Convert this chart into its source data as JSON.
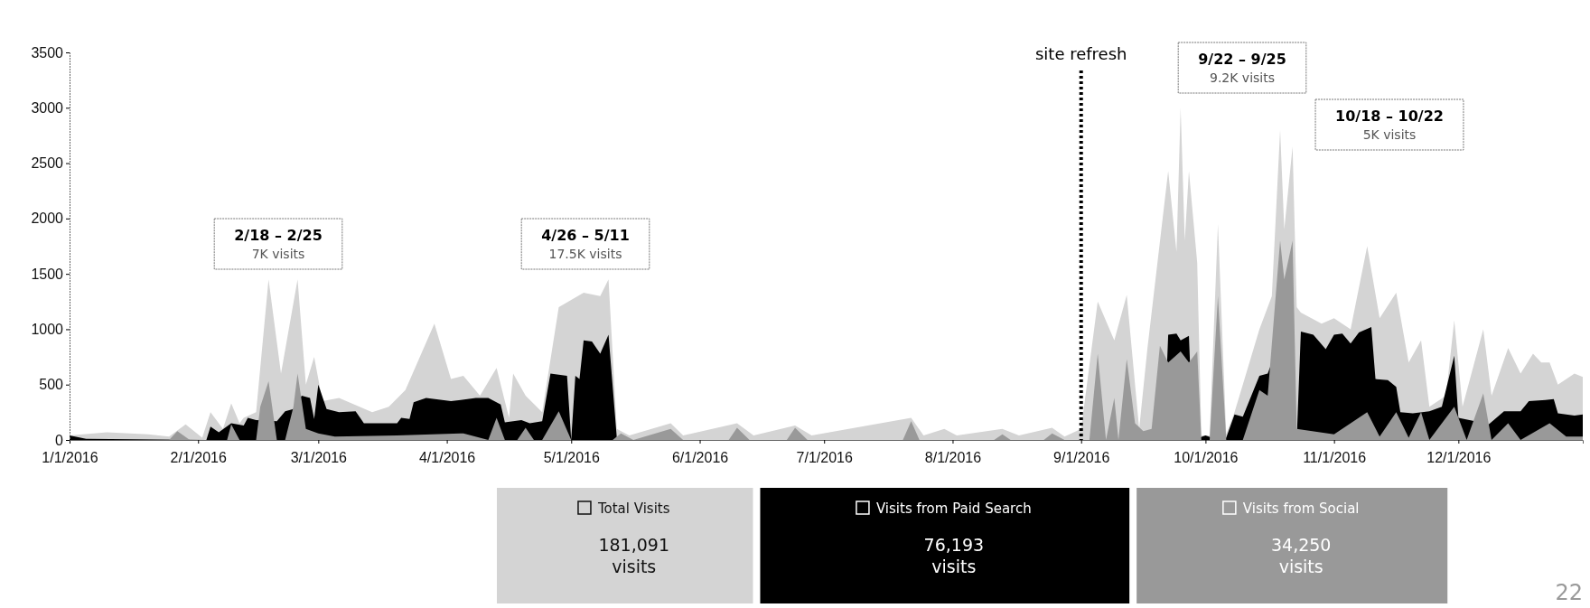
{
  "chart_data": {
    "type": "area",
    "xlim": [
      "2016-01-01",
      "2016-12-31"
    ],
    "xticks": [
      {
        "value": "2016-01-01",
        "label": "1/1/2016"
      },
      {
        "value": "2016-02-01",
        "label": "2/1/2016"
      },
      {
        "value": "2016-03-01",
        "label": "3/1/2016"
      },
      {
        "value": "2016-04-01",
        "label": "4/1/2016"
      },
      {
        "value": "2016-05-01",
        "label": "5/1/2016"
      },
      {
        "value": "2016-06-01",
        "label": "6/1/2016"
      },
      {
        "value": "2016-07-01",
        "label": "7/1/2016"
      },
      {
        "value": "2016-08-01",
        "label": "8/1/2016"
      },
      {
        "value": "2016-09-01",
        "label": "9/1/2016"
      },
      {
        "value": "2016-10-01",
        "label": "10/1/2016"
      },
      {
        "value": "2016-11-01",
        "label": "11/1/2016"
      },
      {
        "value": "2016-12-01",
        "label": "12/1/2016"
      }
    ],
    "ylim": [
      0,
      3500
    ],
    "yticks": [
      0,
      500,
      1000,
      1500,
      2000,
      2500,
      3000,
      3500
    ],
    "legend": "bottom",
    "series": [
      {
        "name": "Total Visits",
        "color": "#d4d4d4",
        "x": [
          "2016-01-01",
          "2016-01-10",
          "2016-01-20",
          "2016-01-25",
          "2016-01-29",
          "2016-02-02",
          "2016-02-04",
          "2016-02-07",
          "2016-02-09",
          "2016-02-11",
          "2016-02-12",
          "2016-02-15",
          "2016-02-18",
          "2016-02-21",
          "2016-02-25",
          "2016-02-27",
          "2016-02-29",
          "2016-03-02",
          "2016-03-06",
          "2016-03-14",
          "2016-03-18",
          "2016-03-22",
          "2016-03-29",
          "2016-04-02",
          "2016-04-05",
          "2016-04-09",
          "2016-04-13",
          "2016-04-16",
          "2016-04-17",
          "2016-04-20",
          "2016-04-24",
          "2016-04-28",
          "2016-05-04",
          "2016-05-08",
          "2016-05-10",
          "2016-05-12",
          "2016-05-15",
          "2016-05-25",
          "2016-05-28",
          "2016-06-10",
          "2016-06-14",
          "2016-06-24",
          "2016-06-28",
          "2016-07-22",
          "2016-07-25",
          "2016-07-30",
          "2016-08-02",
          "2016-08-13",
          "2016-08-17",
          "2016-08-25",
          "2016-08-28",
          "2016-09-01",
          "2016-09-05",
          "2016-09-09",
          "2016-09-12",
          "2016-09-15",
          "2016-09-17",
          "2016-09-22",
          "2016-09-24",
          "2016-09-25",
          "2016-09-26",
          "2016-09-27",
          "2016-09-29",
          "2016-09-30",
          "2016-10-02",
          "2016-10-04",
          "2016-10-06",
          "2016-10-08",
          "2016-10-10",
          "2016-10-14",
          "2016-10-17",
          "2016-10-19",
          "2016-10-20",
          "2016-10-22",
          "2016-10-23",
          "2016-10-24",
          "2016-10-29",
          "2016-11-01",
          "2016-11-05",
          "2016-11-09",
          "2016-11-12",
          "2016-11-16",
          "2016-11-19",
          "2016-11-22",
          "2016-11-24",
          "2016-11-28",
          "2016-11-30",
          "2016-12-02",
          "2016-12-07",
          "2016-12-09",
          "2016-12-13",
          "2016-12-16",
          "2016-12-19",
          "2016-12-21",
          "2016-12-23",
          "2016-12-25",
          "2016-12-29",
          "2016-12-31"
        ],
        "values": [
          40,
          70,
          50,
          30,
          140,
          20,
          250,
          100,
          330,
          150,
          200,
          250,
          1450,
          600,
          1450,
          500,
          750,
          350,
          380,
          250,
          300,
          450,
          1050,
          550,
          580,
          400,
          650,
          200,
          600,
          400,
          250,
          1200,
          1330,
          1300,
          1450,
          100,
          40,
          150,
          40,
          150,
          40,
          130,
          40,
          200,
          40,
          100,
          40,
          100,
          40,
          110,
          30,
          100,
          1250,
          900,
          1310,
          100,
          830,
          2430,
          1700,
          3000,
          1800,
          2430,
          1600,
          40,
          40,
          1950,
          50,
          250,
          500,
          1000,
          1300,
          2800,
          1900,
          2650,
          1200,
          1150,
          1050,
          1100,
          1000,
          1750,
          1100,
          1330,
          700,
          900,
          300,
          400,
          1080,
          300,
          1000,
          400,
          830,
          600,
          780,
          700,
          700,
          500,
          600,
          570
        ]
      },
      {
        "name": "Visits from Paid Search",
        "color": "#000000",
        "x": [
          "2016-01-01",
          "2016-01-05",
          "2016-02-03",
          "2016-02-04",
          "2016-02-06",
          "2016-02-09",
          "2016-02-12",
          "2016-02-13",
          "2016-02-15",
          "2016-02-20",
          "2016-02-22",
          "2016-02-24",
          "2016-02-26",
          "2016-02-28",
          "2016-02-29",
          "2016-03-01",
          "2016-03-03",
          "2016-03-06",
          "2016-03-10",
          "2016-03-12",
          "2016-03-20",
          "2016-03-21",
          "2016-03-23",
          "2016-03-24",
          "2016-03-27",
          "2016-04-02",
          "2016-04-08",
          "2016-04-11",
          "2016-04-14",
          "2016-04-15",
          "2016-04-19",
          "2016-04-21",
          "2016-04-24",
          "2016-04-26",
          "2016-04-30",
          "2016-05-01",
          "2016-05-02",
          "2016-05-03",
          "2016-05-04",
          "2016-05-06",
          "2016-05-08",
          "2016-05-10",
          "2016-05-12",
          "2016-05-15",
          "2016-09-21",
          "2016-09-22",
          "2016-09-24",
          "2016-09-25",
          "2016-09-27",
          "2016-09-28",
          "2016-10-01",
          "2016-10-04",
          "2016-10-06",
          "2016-10-08",
          "2016-10-10",
          "2016-10-14",
          "2016-10-16",
          "2016-10-17",
          "2016-10-18",
          "2016-10-23",
          "2016-10-24",
          "2016-10-27",
          "2016-10-30",
          "2016-11-01",
          "2016-11-03",
          "2016-11-05",
          "2016-11-07",
          "2016-11-10",
          "2016-11-11",
          "2016-11-14",
          "2016-11-16",
          "2016-11-17",
          "2016-11-20",
          "2016-11-24",
          "2016-11-27",
          "2016-11-30",
          "2016-12-01",
          "2016-12-05",
          "2016-12-08",
          "2016-12-12",
          "2016-12-16",
          "2016-12-18",
          "2016-12-22",
          "2016-12-24",
          "2016-12-25",
          "2016-12-29",
          "2016-12-31"
        ],
        "values": [
          40,
          10,
          0,
          120,
          70,
          150,
          130,
          200,
          180,
          170,
          260,
          280,
          400,
          380,
          190,
          500,
          280,
          250,
          260,
          150,
          150,
          200,
          190,
          340,
          380,
          350,
          380,
          380,
          320,
          160,
          180,
          150,
          170,
          600,
          580,
          0,
          580,
          550,
          900,
          890,
          780,
          950,
          20,
          0,
          0,
          950,
          960,
          900,
          940,
          0,
          40,
          0,
          20,
          230,
          210,
          580,
          600,
          700,
          0,
          0,
          980,
          950,
          820,
          950,
          960,
          870,
          970,
          1020,
          550,
          540,
          480,
          250,
          240,
          260,
          300,
          760,
          200,
          170,
          130,
          260,
          260,
          350,
          360,
          370,
          240,
          220,
          230
        ]
      },
      {
        "name": "Visits from Social",
        "color": "#999999",
        "x": [
          "2016-01-25",
          "2016-01-27",
          "2016-01-30",
          "2016-02-08",
          "2016-02-09",
          "2016-02-11",
          "2016-02-15",
          "2016-02-16",
          "2016-02-18",
          "2016-02-20",
          "2016-02-22",
          "2016-02-24",
          "2016-02-25",
          "2016-02-27",
          "2016-03-01",
          "2016-03-05",
          "2016-03-20",
          "2016-04-05",
          "2016-04-11",
          "2016-04-13",
          "2016-04-15",
          "2016-04-18",
          "2016-04-20",
          "2016-04-22",
          "2016-04-24",
          "2016-04-28",
          "2016-05-01",
          "2016-05-11",
          "2016-05-13",
          "2016-05-16",
          "2016-05-25",
          "2016-05-28",
          "2016-06-08",
          "2016-06-10",
          "2016-06-13",
          "2016-06-22",
          "2016-06-24",
          "2016-06-27",
          "2016-07-20",
          "2016-07-22",
          "2016-07-24",
          "2016-08-11",
          "2016-08-13",
          "2016-08-15",
          "2016-08-23",
          "2016-08-25",
          "2016-08-28",
          "2016-09-03",
          "2016-09-05",
          "2016-09-07",
          "2016-09-09",
          "2016-09-10",
          "2016-09-12",
          "2016-09-14",
          "2016-09-16",
          "2016-09-18",
          "2016-09-20",
          "2016-09-22",
          "2016-09-25",
          "2016-09-27",
          "2016-09-29",
          "2016-09-30",
          "2016-10-02",
          "2016-10-04",
          "2016-10-06",
          "2016-10-10",
          "2016-10-14",
          "2016-10-16",
          "2016-10-19",
          "2016-10-20",
          "2016-10-22",
          "2016-10-23",
          "2016-11-01",
          "2016-11-09",
          "2016-11-12",
          "2016-11-16",
          "2016-11-19",
          "2016-11-22",
          "2016-11-24",
          "2016-11-30",
          "2016-12-03",
          "2016-12-07",
          "2016-12-09",
          "2016-12-13",
          "2016-12-16",
          "2016-12-23",
          "2016-12-27",
          "2016-12-31"
        ],
        "values": [
          0,
          80,
          0,
          0,
          140,
          0,
          0,
          300,
          530,
          0,
          0,
          300,
          600,
          100,
          60,
          30,
          40,
          60,
          0,
          200,
          0,
          0,
          110,
          0,
          0,
          260,
          0,
          0,
          60,
          0,
          100,
          0,
          0,
          110,
          0,
          0,
          110,
          0,
          0,
          170,
          0,
          0,
          50,
          0,
          0,
          60,
          0,
          0,
          780,
          0,
          380,
          0,
          730,
          150,
          80,
          100,
          850,
          700,
          800,
          700,
          800,
          0,
          0,
          1300,
          0,
          0,
          450,
          400,
          1800,
          1450,
          1800,
          100,
          50,
          250,
          30,
          250,
          20,
          250,
          0,
          300,
          0,
          420,
          0,
          150,
          0,
          150,
          30,
          30
        ]
      }
    ],
    "ref_lines": [
      {
        "axis": "x",
        "value": "2016-09-01",
        "label": "site refresh",
        "line_style": "dotted",
        "color": "#000000"
      }
    ],
    "annotations": [
      "181,091\nvisits",
      "76,193\nvisits",
      "34,250\nvisits",
      "2/18 – 2/25\n7K visits",
      "4/26 – 5/11\n17.5K visits",
      "9/22 – 9/25\n9.2K visits",
      "10/18 – 10/22\n5K visits",
      "22"
    ]
  }
}
